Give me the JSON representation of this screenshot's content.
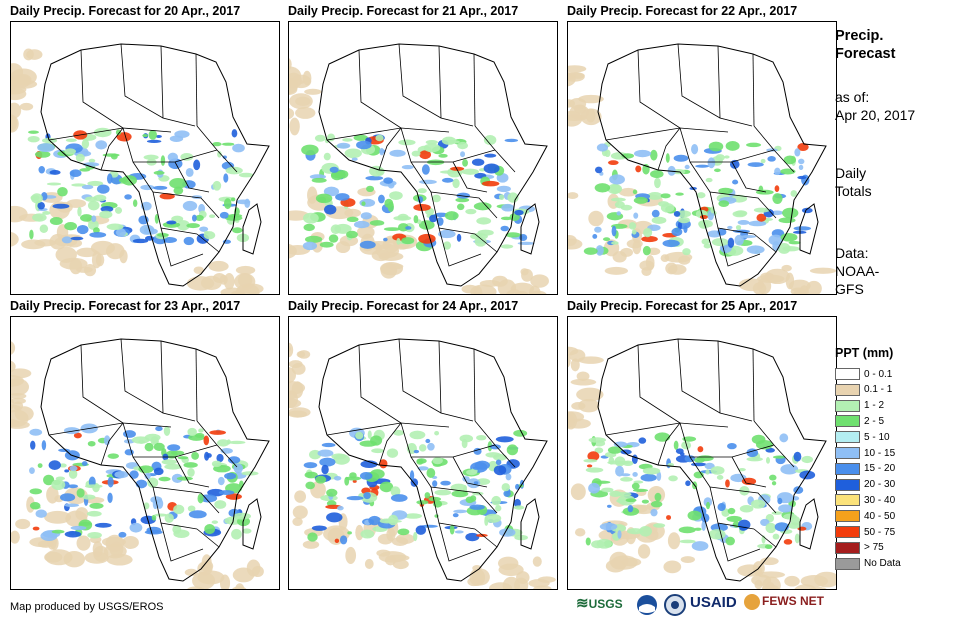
{
  "panels": [
    {
      "title": "Daily Precip. Forecast for 20 Apr., 2017"
    },
    {
      "title": "Daily Precip. Forecast for 21 Apr., 2017"
    },
    {
      "title": "Daily Precip. Forecast for 22 Apr., 2017"
    },
    {
      "title": "Daily Precip. Forecast for 23 Apr., 2017"
    },
    {
      "title": "Daily Precip. Forecast for 24 Apr., 2017"
    },
    {
      "title": "Daily Precip. Forecast for 25 Apr., 2017"
    }
  ],
  "side": {
    "title_line1": "Precip.",
    "title_line2": "Forecast",
    "asof_line1": "as of:",
    "asof_line2": "Apr 20, 2017",
    "totals_line1": "Daily",
    "totals_line2": "Totals",
    "data_line1": "Data:",
    "data_line2": "NOAA-",
    "data_line3": "GFS"
  },
  "legend": {
    "title": "PPT (mm)",
    "items": [
      {
        "label": "0 - 0.1",
        "color": "#ffffff"
      },
      {
        "label": "0.1 - 1",
        "color": "#e8d3b0"
      },
      {
        "label": "1 - 2",
        "color": "#b3f0b3"
      },
      {
        "label": "2 - 5",
        "color": "#6fe06f"
      },
      {
        "label": "5 - 10",
        "color": "#b4eef2"
      },
      {
        "label": "10 - 15",
        "color": "#8fbff5"
      },
      {
        "label": "15 - 20",
        "color": "#4a8fec"
      },
      {
        "label": "20 - 30",
        "color": "#1f5fdc"
      },
      {
        "label": "30 - 40",
        "color": "#fbe27a"
      },
      {
        "label": "40 - 50",
        "color": "#f5a11c"
      },
      {
        "label": "50 - 75",
        "color": "#f23c0c"
      },
      {
        "label": "> 75",
        "color": "#a51d1d"
      },
      {
        "label": "No Data",
        "color": "#9a9a9a"
      }
    ]
  },
  "credit": "Map produced by USGS/EROS",
  "logos": {
    "usgs": "USGS",
    "usaid": "USAID",
    "fewsnet": "FEWS NET"
  }
}
